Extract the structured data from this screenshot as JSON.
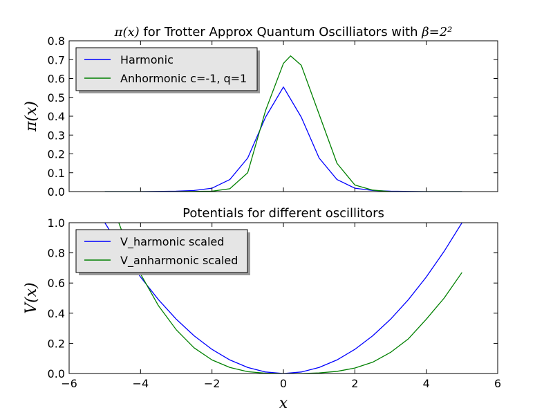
{
  "chart_data": [
    {
      "type": "line",
      "title": "π(x) for Trotter Approx Quantum Oscilliators with β=2²",
      "title_parts": [
        "π(x)",
        " for Trotter Approx Quantum Oscilliators with ",
        "β=2²"
      ],
      "xlabel": "",
      "ylabel": "π(x)",
      "xlim": [
        -6,
        6
      ],
      "ylim": [
        0,
        0.8
      ],
      "xticks": [],
      "yticks": [
        0.0,
        0.1,
        0.2,
        0.3,
        0.4,
        0.5,
        0.6,
        0.7,
        0.8
      ],
      "ytick_labels": [
        "0.0",
        "0.1",
        "0.2",
        "0.3",
        "0.4",
        "0.5",
        "0.6",
        "0.7",
        "0.8"
      ],
      "grid": false,
      "legend_position": "top-left",
      "series": [
        {
          "name": "Harmonic",
          "color": "#0000ff",
          "x": [
            -5.0,
            -4.0,
            -3.0,
            -2.5,
            -2.0,
            -1.5,
            -1.0,
            -0.5,
            0.0,
            0.5,
            1.0,
            1.5,
            2.0,
            2.5,
            3.0,
            4.0,
            5.0
          ],
          "y": [
            0.0,
            0.0,
            0.002,
            0.006,
            0.018,
            0.064,
            0.178,
            0.395,
            0.555,
            0.395,
            0.178,
            0.064,
            0.018,
            0.006,
            0.002,
            0.0,
            0.0
          ]
        },
        {
          "name": "Anhormonic c=-1, q=1",
          "color": "#008000",
          "x": [
            -5.0,
            -3.0,
            -2.0,
            -1.5,
            -1.0,
            -0.5,
            0.0,
            0.2,
            0.5,
            1.0,
            1.5,
            2.0,
            2.5,
            3.0,
            4.0,
            5.0
          ],
          "y": [
            0.0,
            0.0,
            0.002,
            0.015,
            0.1,
            0.43,
            0.68,
            0.72,
            0.67,
            0.41,
            0.15,
            0.035,
            0.008,
            0.0,
            0.0,
            0.0
          ]
        }
      ]
    },
    {
      "type": "line",
      "title": "Potentials for different oscillitors",
      "xlabel": "x",
      "ylabel": "V(x)",
      "xlim": [
        -6,
        6
      ],
      "ylim": [
        0,
        1.0
      ],
      "xticks": [
        -6,
        -4,
        -2,
        0,
        2,
        4,
        6
      ],
      "xtick_labels": [
        "−6",
        "−4",
        "−2",
        "0",
        "2",
        "4",
        "6"
      ],
      "yticks": [
        0.0,
        0.2,
        0.4,
        0.6,
        0.8,
        1.0
      ],
      "ytick_labels": [
        "0.0",
        "0.2",
        "0.4",
        "0.6",
        "0.8",
        "1.0"
      ],
      "grid": false,
      "legend_position": "top-left",
      "series": [
        {
          "name": "V_harmonic scaled",
          "color": "#0000ff",
          "x": [
            -5.0,
            -4.5,
            -4.0,
            -3.5,
            -3.0,
            -2.5,
            -2.0,
            -1.5,
            -1.0,
            -0.5,
            0.0,
            0.5,
            1.0,
            1.5,
            2.0,
            2.5,
            3.0,
            3.5,
            4.0,
            4.5,
            5.0
          ],
          "y": [
            1.0,
            0.81,
            0.64,
            0.49,
            0.36,
            0.25,
            0.16,
            0.09,
            0.04,
            0.01,
            0.0,
            0.01,
            0.04,
            0.09,
            0.16,
            0.25,
            0.36,
            0.49,
            0.64,
            0.81,
            1.0
          ]
        },
        {
          "name": "V_anharmonic scaled",
          "color": "#008000",
          "x": [
            -5.0,
            -4.5,
            -4.0,
            -3.5,
            -3.0,
            -2.5,
            -2.0,
            -1.5,
            -1.0,
            -0.5,
            0.0,
            0.5,
            1.0,
            1.5,
            2.0,
            2.5,
            3.0,
            3.5,
            4.0,
            4.5,
            5.0
          ],
          "y": [
            1.25,
            0.93,
            0.66,
            0.45,
            0.29,
            0.17,
            0.09,
            0.04,
            0.012,
            0.002,
            0.0,
            0.0,
            0.004,
            0.014,
            0.036,
            0.075,
            0.14,
            0.23,
            0.36,
            0.5,
            0.67
          ]
        }
      ]
    }
  ]
}
